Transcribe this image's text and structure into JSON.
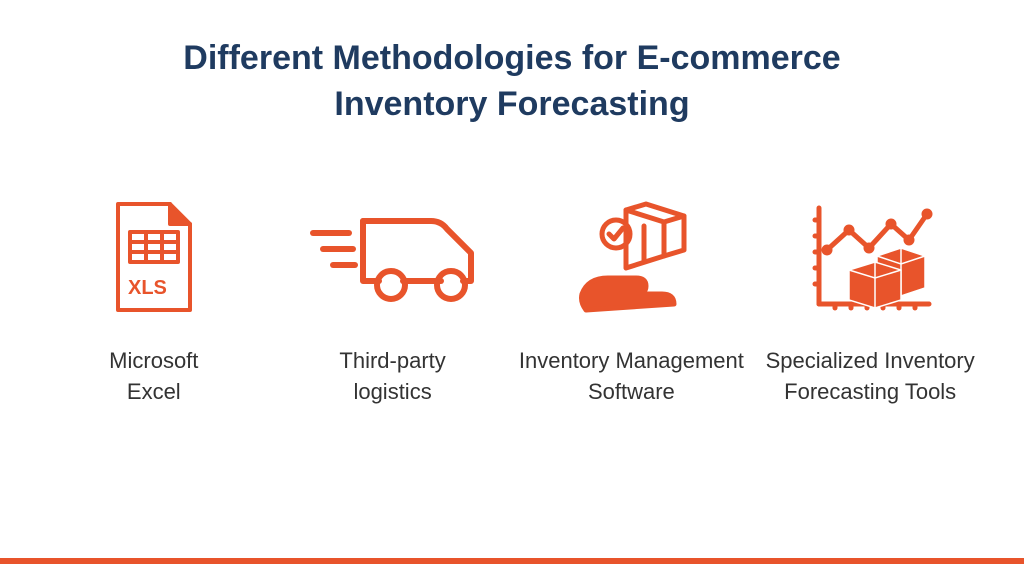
{
  "title": "Different Methodologies for E-commerce Inventory Forecasting",
  "title_color": "#1f3b60",
  "title_fontsize": 34,
  "title_fontweight": 700,
  "background_color": "#ffffff",
  "accent_color": "#e8542b",
  "label_color": "#333333",
  "label_fontsize": 22,
  "bottom_bar_color": "#e8542b",
  "bottom_bar_height": 6,
  "items": [
    {
      "label": "Microsoft Excel",
      "icon": "xls-file-icon"
    },
    {
      "label": "Third-party logistics",
      "icon": "delivery-truck-icon"
    },
    {
      "label": "Inventory Management Software",
      "icon": "hand-box-check-icon"
    },
    {
      "label": "Specialized Inventory Forecasting Tools",
      "icon": "chart-boxes-icon"
    }
  ]
}
